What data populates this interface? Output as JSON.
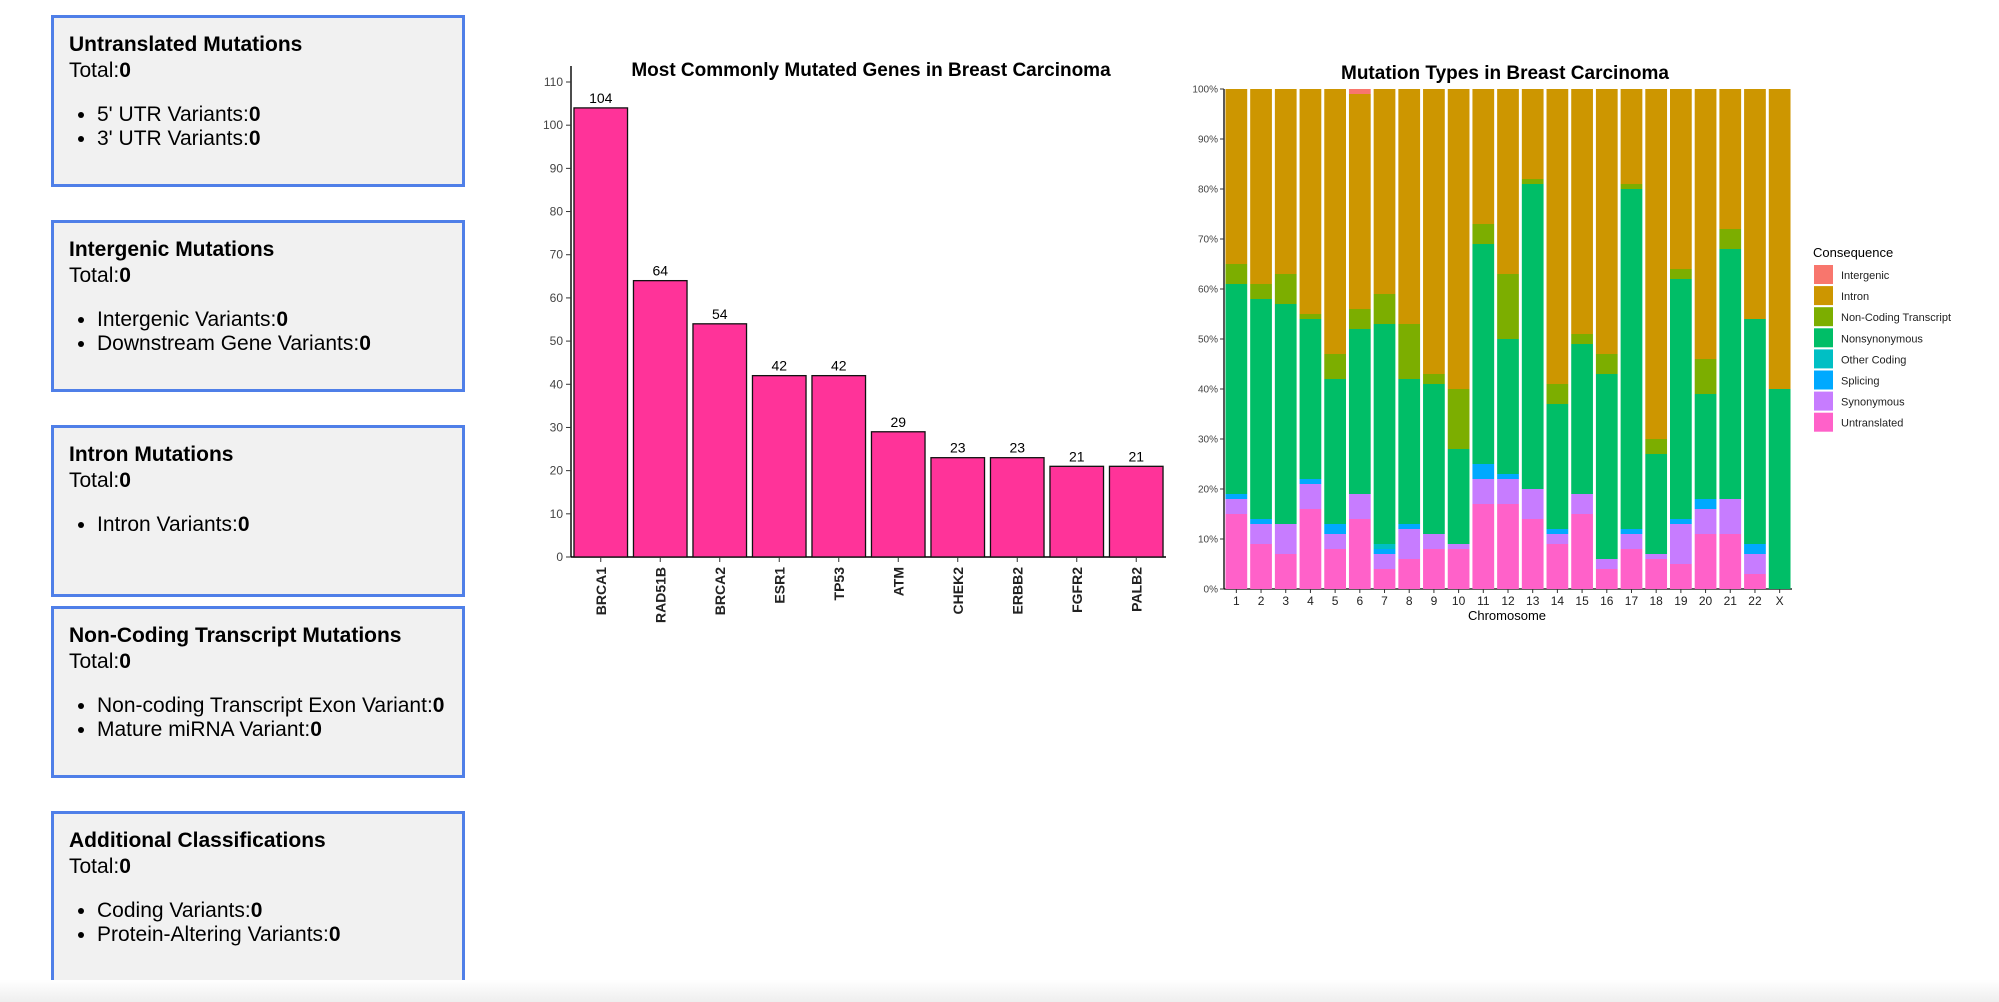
{
  "cards": [
    {
      "title": "Untranslated Mutations",
      "total_label": "Total:",
      "total_value": "0",
      "items": [
        {
          "label": "5' UTR Variants:",
          "value": "0"
        },
        {
          "label": "3' UTR Variants:",
          "value": "0"
        }
      ]
    },
    {
      "title": "Intergenic Mutations",
      "total_label": "Total:",
      "total_value": "0",
      "items": [
        {
          "label": "Intergenic Variants:",
          "value": "0"
        },
        {
          "label": "Downstream Gene Variants:",
          "value": "0"
        }
      ]
    },
    {
      "title": "Intron Mutations",
      "total_label": "Total:",
      "total_value": "0",
      "items": [
        {
          "label": "Intron Variants:",
          "value": "0"
        }
      ]
    },
    {
      "title": "Non-Coding Transcript Mutations",
      "total_label": "Total:",
      "total_value": "0",
      "items": [
        {
          "label": "Non-coding Transcript Exon Variant:",
          "value": "0"
        },
        {
          "label": "Mature miRNA Variant:",
          "value": "0"
        }
      ]
    },
    {
      "title": "Additional Classifications",
      "total_label": "Total:",
      "total_value": "0",
      "items": [
        {
          "label": "Coding Variants:",
          "value": "0"
        },
        {
          "label": "Protein-Altering Variants:",
          "value": "0"
        }
      ]
    }
  ],
  "chart_data": [
    {
      "type": "bar",
      "title": "Most Commonly Mutated Genes in Breast Carcinoma",
      "xlabel": "",
      "ylabel": "",
      "categories": [
        "BRCA1",
        "RAD51B",
        "BRCA2",
        "ESR1",
        "TP53",
        "ATM",
        "CHEK2",
        "ERBB2",
        "FGFR2",
        "PALB2"
      ],
      "values": [
        104,
        64,
        54,
        42,
        42,
        29,
        23,
        23,
        21,
        21
      ],
      "ylim": [
        0,
        110
      ],
      "yticks": [
        0,
        10,
        20,
        30,
        40,
        50,
        60,
        70,
        80,
        90,
        100,
        110
      ],
      "bar_color": "#ff3399",
      "data_labels": true,
      "grid": false
    },
    {
      "type": "bar",
      "stacked": true,
      "normalized": true,
      "title": "Mutation Types in Breast Carcinoma",
      "xlabel": "Chromosome",
      "ylabel": "",
      "legend_title": "Consequence",
      "legend_position": "right",
      "ylim": [
        0,
        100
      ],
      "yticks": [
        "0%",
        "10%",
        "20%",
        "30%",
        "40%",
        "50%",
        "60%",
        "70%",
        "80%",
        "90%",
        "100%"
      ],
      "categories": [
        "1",
        "2",
        "3",
        "4",
        "5",
        "6",
        "7",
        "8",
        "9",
        "10",
        "11",
        "12",
        "13",
        "14",
        "15",
        "16",
        "17",
        "18",
        "19",
        "20",
        "21",
        "22",
        "X"
      ],
      "series": [
        {
          "name": "Untranslated",
          "color": "#ff61c9",
          "values": [
            15,
            9,
            7,
            16,
            8,
            14,
            4,
            6,
            8,
            8,
            17,
            17,
            14,
            9,
            15,
            4,
            8,
            6,
            5,
            11,
            11,
            3,
            0
          ]
        },
        {
          "name": "Synonymous",
          "color": "#c77cff",
          "values": [
            3,
            4,
            6,
            5,
            3,
            5,
            3,
            6,
            3,
            1,
            5,
            5,
            6,
            2,
            4,
            2,
            3,
            1,
            8,
            5,
            7,
            4,
            0
          ]
        },
        {
          "name": "Splicing",
          "color": "#00a9ff",
          "values": [
            1,
            1,
            0,
            1,
            2,
            0,
            1,
            1,
            0,
            0,
            3,
            1,
            0,
            1,
            0,
            0,
            1,
            0,
            1,
            2,
            0,
            2,
            0
          ]
        },
        {
          "name": "Other Coding",
          "color": "#00bfc4",
          "values": [
            0,
            0,
            0,
            0,
            0,
            0,
            1,
            0,
            0,
            0,
            0,
            0,
            0,
            0,
            0,
            0,
            0,
            0,
            0,
            0,
            0,
            0,
            0
          ]
        },
        {
          "name": "Nonsynonymous",
          "color": "#00be67",
          "values": [
            42,
            44,
            44,
            32,
            29,
            33,
            44,
            29,
            30,
            19,
            44,
            27,
            61,
            25,
            30,
            37,
            68,
            20,
            48,
            21,
            50,
            45,
            40
          ]
        },
        {
          "name": "Non-Coding Transcript",
          "color": "#7cae00",
          "values": [
            4,
            3,
            6,
            1,
            5,
            4,
            6,
            11,
            2,
            12,
            4,
            13,
            1,
            4,
            2,
            4,
            1,
            3,
            2,
            7,
            4,
            0,
            0
          ]
        },
        {
          "name": "Intron",
          "color": "#cd9600",
          "values": [
            35,
            39,
            37,
            45,
            53,
            43,
            41,
            47,
            57,
            60,
            27,
            37,
            18,
            59,
            49,
            53,
            19,
            70,
            36,
            54,
            28,
            46,
            60
          ]
        },
        {
          "name": "Intergenic",
          "color": "#f8766d",
          "values": [
            0,
            0,
            0,
            0,
            0,
            1,
            0,
            0,
            0,
            0,
            0,
            0,
            0,
            0,
            0,
            0,
            0,
            0,
            0,
            0,
            0,
            0,
            0
          ]
        }
      ],
      "legend_order": [
        "Intergenic",
        "Intron",
        "Non-Coding Transcript",
        "Nonsynonymous",
        "Other Coding",
        "Splicing",
        "Synonymous",
        "Untranslated"
      ]
    }
  ]
}
